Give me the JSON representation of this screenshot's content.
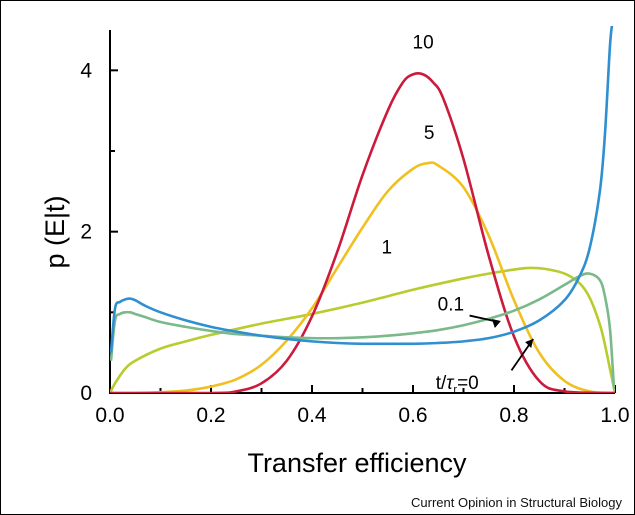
{
  "chart_data": {
    "type": "line",
    "xlabel": "Transfer efficiency",
    "ylabel": "p (E|t)",
    "xlim": [
      0,
      1
    ],
    "ylim": [
      0,
      4.5
    ],
    "x_ticks": [
      "0.0",
      "0.2",
      "0.4",
      "0.6",
      "0.8",
      "1.0"
    ],
    "y_ticks": [
      "0",
      "2",
      "4"
    ],
    "grid": false,
    "legend": "none (curves labeled directly)",
    "series": [
      {
        "name": "t/τr=0",
        "label_parts": {
          "t": "t",
          "slash": "/",
          "tau": "τ",
          "sub": "r",
          "eq": "=0"
        },
        "color": "#2f8fd0",
        "x": [
          0.002,
          0.01,
          0.02,
          0.03,
          0.04,
          0.05,
          0.07,
          0.1,
          0.15,
          0.2,
          0.25,
          0.3,
          0.35,
          0.4,
          0.45,
          0.5,
          0.55,
          0.6,
          0.65,
          0.7,
          0.75,
          0.8,
          0.85,
          0.9,
          0.93,
          0.95,
          0.97,
          0.98,
          0.99,
          0.995
        ],
        "y": [
          0.5,
          1.05,
          1.13,
          1.16,
          1.17,
          1.15,
          1.08,
          1.0,
          0.9,
          0.82,
          0.76,
          0.71,
          0.67,
          0.64,
          0.62,
          0.61,
          0.61,
          0.61,
          0.62,
          0.64,
          0.68,
          0.76,
          0.9,
          1.15,
          1.45,
          1.8,
          2.5,
          3.2,
          4.3,
          4.6
        ]
      },
      {
        "name": "0.1",
        "color": "#7ab98a",
        "x": [
          0.002,
          0.01,
          0.02,
          0.03,
          0.04,
          0.05,
          0.07,
          0.1,
          0.15,
          0.2,
          0.25,
          0.3,
          0.35,
          0.4,
          0.45,
          0.5,
          0.55,
          0.6,
          0.65,
          0.7,
          0.75,
          0.8,
          0.85,
          0.9,
          0.93,
          0.95,
          0.97,
          0.98,
          0.99,
          0.998
        ],
        "y": [
          0.4,
          0.9,
          0.98,
          1.0,
          1.0,
          0.98,
          0.94,
          0.88,
          0.82,
          0.77,
          0.73,
          0.71,
          0.69,
          0.68,
          0.68,
          0.69,
          0.71,
          0.74,
          0.78,
          0.84,
          0.92,
          1.02,
          1.16,
          1.34,
          1.45,
          1.48,
          1.4,
          1.2,
          0.8,
          0.05
        ]
      },
      {
        "name": "1",
        "color": "#b8cc2e",
        "x": [
          0.0,
          0.01,
          0.03,
          0.05,
          0.1,
          0.15,
          0.2,
          0.3,
          0.4,
          0.5,
          0.6,
          0.7,
          0.75,
          0.8,
          0.83,
          0.86,
          0.9,
          0.93,
          0.95,
          0.97,
          0.98,
          0.99,
          1.0
        ],
        "y": [
          0.0,
          0.12,
          0.3,
          0.4,
          0.55,
          0.64,
          0.72,
          0.86,
          0.98,
          1.12,
          1.28,
          1.42,
          1.48,
          1.53,
          1.55,
          1.54,
          1.48,
          1.36,
          1.18,
          0.85,
          0.6,
          0.3,
          0.0
        ]
      },
      {
        "name": "5",
        "color": "#f0c020",
        "x": [
          0.0,
          0.05,
          0.1,
          0.15,
          0.2,
          0.25,
          0.3,
          0.35,
          0.4,
          0.45,
          0.5,
          0.55,
          0.6,
          0.63,
          0.65,
          0.7,
          0.75,
          0.8,
          0.85,
          0.9,
          0.95,
          1.0
        ],
        "y": [
          0.0,
          0.0,
          0.01,
          0.03,
          0.08,
          0.17,
          0.35,
          0.65,
          1.05,
          1.55,
          2.05,
          2.5,
          2.78,
          2.85,
          2.82,
          2.55,
          1.95,
          1.15,
          0.5,
          0.15,
          0.02,
          0.0
        ]
      },
      {
        "name": "10",
        "color": "#cc1a3c",
        "x": [
          0.0,
          0.2,
          0.25,
          0.3,
          0.35,
          0.4,
          0.45,
          0.5,
          0.55,
          0.58,
          0.6,
          0.62,
          0.64,
          0.66,
          0.7,
          0.75,
          0.8,
          0.85,
          0.9,
          1.0
        ],
        "y": [
          0.0,
          0.0,
          0.02,
          0.12,
          0.4,
          0.95,
          1.75,
          2.7,
          3.5,
          3.85,
          3.95,
          3.95,
          3.85,
          3.65,
          2.9,
          1.7,
          0.7,
          0.15,
          0.02,
          0.0
        ]
      }
    ],
    "annotations": [
      {
        "text": "10",
        "x": 0.62,
        "y": 4.27
      },
      {
        "text": "5",
        "x": 0.632,
        "y": 3.15
      },
      {
        "text": "1",
        "x": 0.548,
        "y": 1.73
      },
      {
        "text": "0.1",
        "x": 0.675,
        "y": 1.02
      },
      {
        "text": "t/τr=0",
        "x": 0.645,
        "y": 0.05
      }
    ]
  },
  "footer": {
    "journal": "Current Opinion in Structural Biology"
  }
}
